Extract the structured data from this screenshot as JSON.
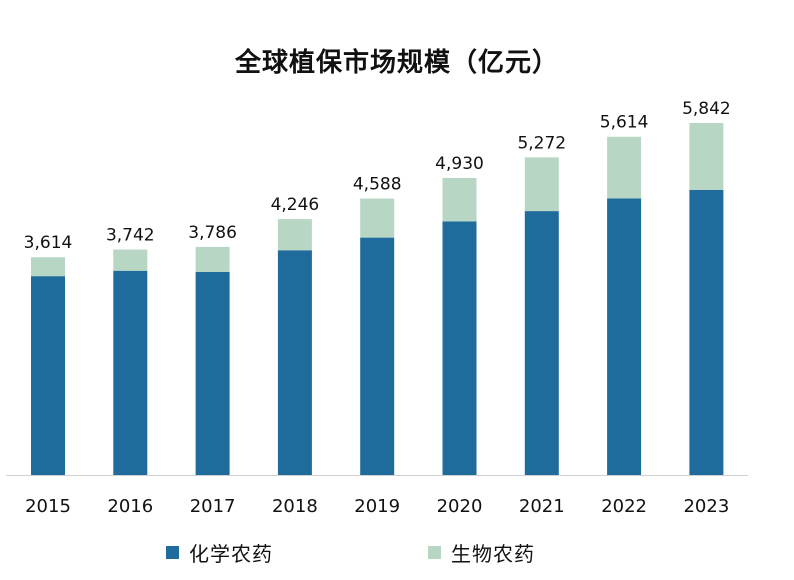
{
  "chart_data": {
    "type": "bar",
    "stacked": true,
    "title": "全球植保市场规模（亿元）",
    "categories": [
      "2015",
      "2016",
      "2017",
      "2018",
      "2019",
      "2020",
      "2021",
      "2022",
      "2023"
    ],
    "series": [
      {
        "name": "化学农药",
        "color": "#1f6b9c",
        "values": [
          3300,
          3390,
          3370,
          3730,
          3940,
          4210,
          4380,
          4590,
          4730
        ]
      },
      {
        "name": "生物农药",
        "color": "#b7d6c3",
        "values": [
          314,
          352,
          416,
          516,
          648,
          720,
          892,
          1024,
          1112
        ]
      }
    ],
    "totals_labels": [
      "3,614",
      "3,742",
      "3,786",
      "4,246",
      "4,588",
      "4,930",
      "5,272",
      "5,614",
      "5,842"
    ],
    "totals": [
      3614,
      3742,
      3786,
      4246,
      4588,
      4930,
      5272,
      5614,
      5842
    ],
    "ylim": [
      0,
      6000
    ],
    "xlabel": "",
    "ylabel": "",
    "grid": false,
    "legend_position": "bottom"
  }
}
